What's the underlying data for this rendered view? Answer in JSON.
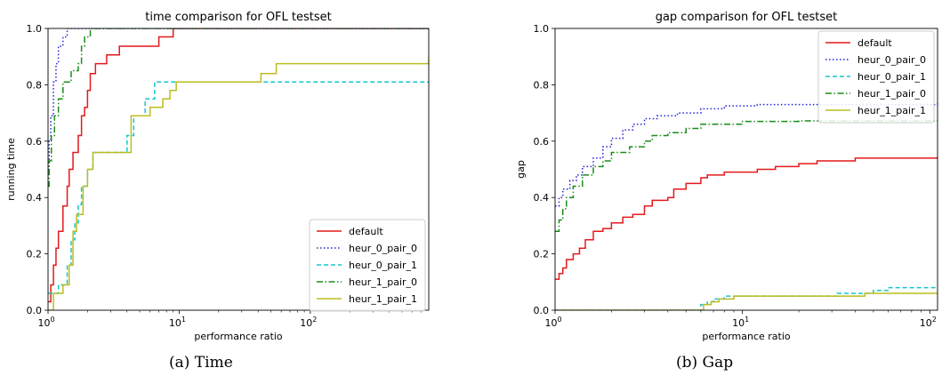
{
  "captions": [
    "(a)  Time",
    "(b)  Gap"
  ],
  "chart_data": [
    {
      "type": "line",
      "drawstyle": "step",
      "title": "time comparison for OFL testset",
      "xlabel": "performance ratio",
      "ylabel": "running time",
      "xscale": "log",
      "xlim": [
        1,
        800
      ],
      "ylim": [
        0,
        1.0
      ],
      "xticks": [
        {
          "v": 1,
          "base": "10",
          "exp": "0"
        },
        {
          "v": 10,
          "base": "10",
          "exp": "1"
        },
        {
          "v": 100,
          "base": "10",
          "exp": "2"
        }
      ],
      "yticks": [
        0,
        0.2,
        0.4,
        0.6,
        0.8,
        1.0
      ],
      "ytick_labels": [
        "0.0",
        "0.2",
        "0.4",
        "0.6",
        "0.8",
        "1.0"
      ],
      "legend_position": "lower-right",
      "series": [
        {
          "name": "default",
          "color": "#e41a1c",
          "dash": "solid",
          "points": [
            [
              1,
              0.03
            ],
            [
              1.05,
              0.09
            ],
            [
              1.1,
              0.16
            ],
            [
              1.15,
              0.22
            ],
            [
              1.2,
              0.28
            ],
            [
              1.3,
              0.37
            ],
            [
              1.4,
              0.44
            ],
            [
              1.45,
              0.5
            ],
            [
              1.55,
              0.56
            ],
            [
              1.7,
              0.62
            ],
            [
              1.8,
              0.69
            ],
            [
              1.9,
              0.72
            ],
            [
              2.0,
              0.78
            ],
            [
              2.1,
              0.84
            ],
            [
              2.3,
              0.875
            ],
            [
              2.7,
              0.875
            ],
            [
              2.8,
              0.906
            ],
            [
              3.5,
              0.937
            ],
            [
              7,
              0.97
            ],
            [
              9,
              1.0
            ],
            [
              800,
              1.0
            ]
          ]
        },
        {
          "name": "heur_0_pair_0",
          "color": "#2222dd",
          "dash": "dot",
          "points": [
            [
              1,
              0.5
            ],
            [
              1.02,
              0.6
            ],
            [
              1.05,
              0.69
            ],
            [
              1.1,
              0.81
            ],
            [
              1.15,
              0.875
            ],
            [
              1.2,
              0.937
            ],
            [
              1.3,
              0.97
            ],
            [
              1.4,
              1.0
            ],
            [
              800,
              1.0
            ]
          ]
        },
        {
          "name": "heur_0_pair_1",
          "color": "#17c5cc",
          "dash": "dash",
          "points": [
            [
              1,
              0.06
            ],
            [
              1.1,
              0.06
            ],
            [
              1.2,
              0.09
            ],
            [
              1.4,
              0.16
            ],
            [
              1.5,
              0.25
            ],
            [
              1.6,
              0.31
            ],
            [
              1.7,
              0.375
            ],
            [
              1.8,
              0.44
            ],
            [
              2.0,
              0.5
            ],
            [
              2.2,
              0.56
            ],
            [
              4,
              0.62
            ],
            [
              4.5,
              0.69
            ],
            [
              5.5,
              0.75
            ],
            [
              6.5,
              0.81
            ],
            [
              9,
              0.81
            ],
            [
              800,
              0.81
            ]
          ]
        },
        {
          "name": "heur_1_pair_0",
          "color": "#1a8c1a",
          "dash": "dashdot",
          "points": [
            [
              1,
              0.44
            ],
            [
              1.02,
              0.53
            ],
            [
              1.06,
              0.62
            ],
            [
              1.12,
              0.69
            ],
            [
              1.2,
              0.75
            ],
            [
              1.3,
              0.81
            ],
            [
              1.5,
              0.85
            ],
            [
              1.7,
              0.875
            ],
            [
              1.8,
              0.937
            ],
            [
              1.9,
              0.97
            ],
            [
              2.1,
              1.0
            ],
            [
              800,
              1.0
            ]
          ]
        },
        {
          "name": "heur_1_pair_1",
          "color": "#bcbd22",
          "dash": "solid",
          "points": [
            [
              1,
              0.0
            ],
            [
              1.1,
              0.06
            ],
            [
              1.3,
              0.09
            ],
            [
              1.45,
              0.16
            ],
            [
              1.55,
              0.28
            ],
            [
              1.65,
              0.34
            ],
            [
              1.85,
              0.44
            ],
            [
              2.0,
              0.5
            ],
            [
              2.2,
              0.56
            ],
            [
              3.8,
              0.56
            ],
            [
              4.3,
              0.69
            ],
            [
              6,
              0.72
            ],
            [
              7.5,
              0.75
            ],
            [
              8.5,
              0.78
            ],
            [
              9.5,
              0.81
            ],
            [
              40,
              0.81
            ],
            [
              42,
              0.84
            ],
            [
              55,
              0.875
            ],
            [
              790,
              0.875
            ],
            [
              800,
              0.9
            ]
          ]
        }
      ]
    },
    {
      "type": "line",
      "drawstyle": "step",
      "title": "gap comparison for OFL testset",
      "xlabel": "performance ratio",
      "ylabel": "gap",
      "xscale": "log",
      "xlim": [
        1,
        110
      ],
      "ylim": [
        0,
        1.0
      ],
      "xticks": [
        {
          "v": 1,
          "base": "10",
          "exp": "0"
        },
        {
          "v": 10,
          "base": "10",
          "exp": "1"
        },
        {
          "v": 100,
          "base": "10",
          "exp": "2"
        }
      ],
      "yticks": [
        0,
        0.2,
        0.4,
        0.6,
        0.8,
        1.0
      ],
      "ytick_labels": [
        "0.0",
        "0.2",
        "0.4",
        "0.6",
        "0.8",
        "1.0"
      ],
      "legend_position": "upper-right",
      "series": [
        {
          "name": "default",
          "color": "#e41a1c",
          "dash": "solid",
          "points": [
            [
              1,
              0.11
            ],
            [
              1.05,
              0.13
            ],
            [
              1.1,
              0.15
            ],
            [
              1.15,
              0.18
            ],
            [
              1.25,
              0.2
            ],
            [
              1.35,
              0.22
            ],
            [
              1.45,
              0.25
            ],
            [
              1.6,
              0.28
            ],
            [
              1.8,
              0.29
            ],
            [
              2.0,
              0.31
            ],
            [
              2.3,
              0.33
            ],
            [
              2.6,
              0.34
            ],
            [
              3.0,
              0.37
            ],
            [
              3.3,
              0.39
            ],
            [
              4,
              0.4
            ],
            [
              4.3,
              0.43
            ],
            [
              5,
              0.45
            ],
            [
              6,
              0.47
            ],
            [
              6.5,
              0.48
            ],
            [
              8,
              0.49
            ],
            [
              12,
              0.5
            ],
            [
              15,
              0.51
            ],
            [
              20,
              0.52
            ],
            [
              25,
              0.53
            ],
            [
              40,
              0.54
            ],
            [
              110,
              0.545
            ]
          ]
        },
        {
          "name": "heur_0_pair_0",
          "color": "#2222dd",
          "dash": "dot",
          "points": [
            [
              1,
              0.37
            ],
            [
              1.05,
              0.4
            ],
            [
              1.1,
              0.43
            ],
            [
              1.2,
              0.46
            ],
            [
              1.3,
              0.48
            ],
            [
              1.4,
              0.51
            ],
            [
              1.6,
              0.54
            ],
            [
              1.8,
              0.58
            ],
            [
              2.0,
              0.61
            ],
            [
              2.3,
              0.64
            ],
            [
              2.6,
              0.66
            ],
            [
              3.0,
              0.68
            ],
            [
              3.5,
              0.69
            ],
            [
              4.5,
              0.7
            ],
            [
              6,
              0.715
            ],
            [
              8,
              0.725
            ],
            [
              12,
              0.73
            ],
            [
              110,
              0.735
            ]
          ]
        },
        {
          "name": "heur_0_pair_1",
          "color": "#17c5cc",
          "dash": "dash",
          "points": [
            [
              1,
              0.0
            ],
            [
              5.5,
              0.0
            ],
            [
              6,
              0.02
            ],
            [
              6.5,
              0.03
            ],
            [
              7,
              0.04
            ],
            [
              8,
              0.05
            ],
            [
              30,
              0.05
            ],
            [
              32,
              0.06
            ],
            [
              50,
              0.07
            ],
            [
              60,
              0.08
            ],
            [
              110,
              0.08
            ]
          ]
        },
        {
          "name": "heur_1_pair_0",
          "color": "#1a8c1a",
          "dash": "dashdot",
          "points": [
            [
              1,
              0.28
            ],
            [
              1.05,
              0.32
            ],
            [
              1.1,
              0.36
            ],
            [
              1.15,
              0.4
            ],
            [
              1.25,
              0.44
            ],
            [
              1.4,
              0.48
            ],
            [
              1.6,
              0.51
            ],
            [
              1.8,
              0.53
            ],
            [
              2.0,
              0.56
            ],
            [
              2.5,
              0.58
            ],
            [
              3.0,
              0.6
            ],
            [
              3.3,
              0.62
            ],
            [
              4,
              0.63
            ],
            [
              5,
              0.645
            ],
            [
              6,
              0.66
            ],
            [
              10,
              0.67
            ],
            [
              20,
              0.672
            ],
            [
              110,
              0.675
            ]
          ]
        },
        {
          "name": "heur_1_pair_1",
          "color": "#bcbd22",
          "dash": "solid",
          "points": [
            [
              1,
              0.0
            ],
            [
              5.8,
              0.0
            ],
            [
              6.2,
              0.02
            ],
            [
              6.8,
              0.03
            ],
            [
              7.5,
              0.04
            ],
            [
              9,
              0.05
            ],
            [
              30,
              0.05
            ],
            [
              45,
              0.06
            ],
            [
              110,
              0.06
            ]
          ]
        }
      ]
    }
  ]
}
